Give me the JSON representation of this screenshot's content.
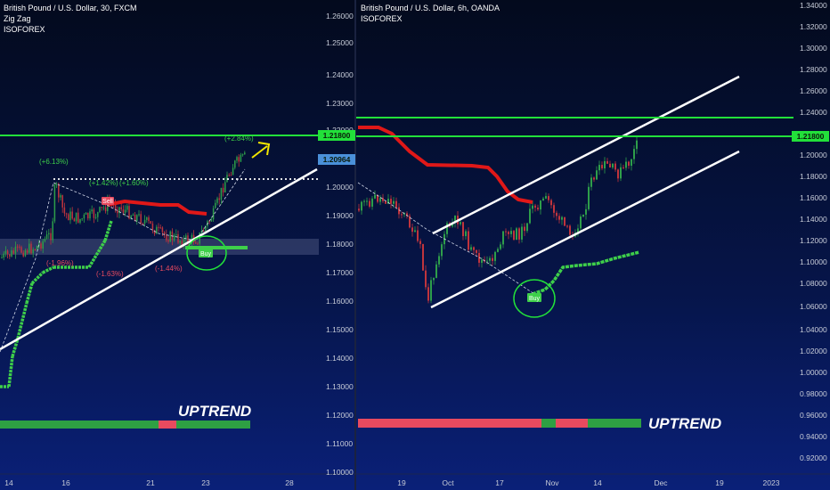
{
  "colors": {
    "support_green": "#22e03a",
    "candle_up": "#2e9e4a",
    "candle_down": "#c0343c",
    "sell_line": "#e01818",
    "buy_line": "#3ecf4a",
    "bar_green": "#2ea043",
    "bar_red": "#e84a5f",
    "price_tag_blue": "#4a90d9"
  },
  "left_panel": {
    "header": {
      "title": "British Pound / U.S. Dollar, 30, FXCM",
      "indicator1": "Zig Zag",
      "indicator2": "ISOFOREX"
    },
    "yticks": [
      "1.26000",
      "1.25000",
      "1.24000",
      "1.23000",
      "1.22000",
      "1.20000",
      "1.19000",
      "1.18000",
      "1.17000",
      "1.16000",
      "1.15000",
      "1.14000",
      "1.13000",
      "1.12000",
      "1.11000",
      "1.10000"
    ],
    "xticks": [
      "14",
      "16",
      "21",
      "23",
      "28"
    ],
    "price_tags": [
      {
        "label": "1.21800",
        "kind": "green"
      },
      {
        "label": "1.20964",
        "kind": "blue"
      }
    ],
    "annotations": {
      "a1": "(+6.13%)",
      "a2": "(+2.84%)",
      "a3": "(+1.42%)",
      "a4": "(+1.60%)",
      "a5": "(-1.96%)",
      "a6": "(-1.63%)",
      "a7": "(-1.44%)"
    },
    "sell_label": "Sell",
    "buy_label": "Buy",
    "trend_label": "UPTREND"
  },
  "right_panel": {
    "header": {
      "title": "British Pound / U.S. Dollar, 6h, OANDA",
      "indicator1": "ISOFOREX"
    },
    "yticks": [
      "1.34000",
      "1.32000",
      "1.30000",
      "1.28000",
      "1.26000",
      "1.24000",
      "1.22000",
      "1.20000",
      "1.18000",
      "1.16000",
      "1.14000",
      "1.12000",
      "1.10000",
      "1.08000",
      "1.06000",
      "1.04000",
      "1.02000",
      "1.00000",
      "0.98000",
      "0.96000",
      "0.94000",
      "0.92000"
    ],
    "xticks": [
      "19",
      "Oct",
      "17",
      "Nov",
      "14",
      "Dec",
      "19",
      "2023"
    ],
    "price_tags": [
      {
        "label": "1.21800",
        "kind": "green"
      }
    ],
    "buy_label": "Buy",
    "trend_label": "UPTREND"
  },
  "chart_data": [
    {
      "type": "line",
      "title": "British Pound / U.S. Dollar, 30, FXCM",
      "xlabel": "",
      "ylabel": "",
      "ylim": [
        1.095,
        1.265
      ],
      "x_ticks": [
        "14",
        "16",
        "21",
        "23",
        "28"
      ],
      "series": [],
      "levels": [
        1.218,
        1.20964,
        1.2025
      ],
      "trend_label": "UPTREND"
    },
    {
      "type": "line",
      "title": "British Pound / U.S. Dollar, 6h, OANDA",
      "xlabel": "",
      "ylabel": "",
      "ylim": [
        0.91,
        1.345
      ],
      "x_ticks": [
        "19",
        "Oct",
        "17",
        "Nov",
        "14",
        "Dec",
        "19",
        "2023"
      ],
      "series": [],
      "levels": [
        1.233,
        1.218
      ],
      "trend_label": "UPTREND"
    }
  ]
}
